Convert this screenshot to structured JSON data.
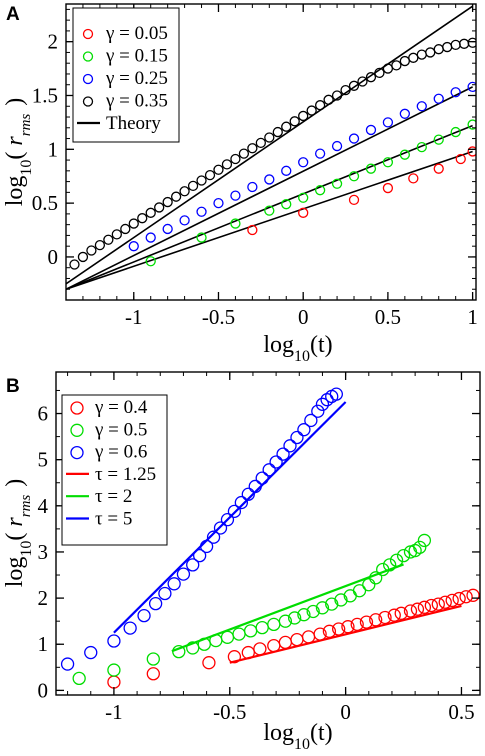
{
  "chart_data": [
    {
      "panel": "A",
      "type": "scatter",
      "xlabel": "log10(t)",
      "ylabel": "log10( r_rms )",
      "xlim": [
        -1.4,
        1.02
      ],
      "ylim": [
        -0.4,
        2.35
      ],
      "x_ticks": [
        -1,
        -0.5,
        0,
        0.5,
        1
      ],
      "x_tick_labels": [
        "-1",
        "-0.5",
        "0",
        "0.5",
        "1"
      ],
      "y_ticks": [
        0,
        0.5,
        1,
        1.5,
        2
      ],
      "y_tick_labels": [
        "0",
        "0.5",
        "1",
        "1.5",
        "2"
      ],
      "minor_x_step": 0.1,
      "minor_y_step": 0.1,
      "legend_position": "top-left",
      "series": [
        {
          "name": "γ = 0.05",
          "color": "#ff0000",
          "marker": "open-circle",
          "x": [
            -0.3,
            0.0,
            0.3,
            0.5,
            0.65,
            0.8,
            0.93,
            1.0
          ],
          "y": [
            0.25,
            0.41,
            0.53,
            0.64,
            0.73,
            0.82,
            0.91,
            0.98
          ]
        },
        {
          "name": "γ = 0.15",
          "color": "#00dd00",
          "marker": "open-circle",
          "x": [
            -0.9,
            -0.6,
            -0.4,
            -0.2,
            -0.1,
            0.0,
            0.1,
            0.2,
            0.3,
            0.4,
            0.5,
            0.6,
            0.7,
            0.8,
            0.9,
            1.0
          ],
          "y": [
            -0.04,
            0.18,
            0.31,
            0.43,
            0.49,
            0.55,
            0.62,
            0.68,
            0.75,
            0.82,
            0.88,
            0.95,
            1.02,
            1.09,
            1.16,
            1.23
          ]
        },
        {
          "name": "γ = 0.25",
          "color": "#0000ff",
          "marker": "open-circle",
          "x": [
            -1.0,
            -0.9,
            -0.8,
            -0.7,
            -0.6,
            -0.5,
            -0.4,
            -0.3,
            -0.2,
            -0.1,
            0.0,
            0.1,
            0.2,
            0.3,
            0.4,
            0.5,
            0.6,
            0.7,
            0.8,
            0.9,
            1.0
          ],
          "y": [
            0.1,
            0.18,
            0.26,
            0.34,
            0.42,
            0.5,
            0.57,
            0.65,
            0.72,
            0.8,
            0.88,
            0.96,
            1.03,
            1.1,
            1.18,
            1.25,
            1.33,
            1.4,
            1.47,
            1.53,
            1.58
          ]
        },
        {
          "name": "γ = 0.35",
          "color": "#000000",
          "marker": "open-circle",
          "x": [
            -1.35,
            -1.3,
            -1.25,
            -1.2,
            -1.15,
            -1.1,
            -1.05,
            -1.0,
            -0.95,
            -0.9,
            -0.85,
            -0.8,
            -0.75,
            -0.7,
            -0.65,
            -0.6,
            -0.55,
            -0.5,
            -0.45,
            -0.4,
            -0.35,
            -0.3,
            -0.25,
            -0.2,
            -0.15,
            -0.1,
            -0.05,
            0.0,
            0.05,
            0.1,
            0.15,
            0.2,
            0.25,
            0.3,
            0.35,
            0.4,
            0.45,
            0.5,
            0.55,
            0.6,
            0.65,
            0.7,
            0.75,
            0.8,
            0.85,
            0.9,
            0.95,
            1.0
          ],
          "y": [
            -0.07,
            0.0,
            0.06,
            0.11,
            0.16,
            0.21,
            0.26,
            0.31,
            0.36,
            0.41,
            0.46,
            0.51,
            0.56,
            0.61,
            0.66,
            0.71,
            0.76,
            0.81,
            0.86,
            0.91,
            0.96,
            1.01,
            1.06,
            1.11,
            1.16,
            1.21,
            1.26,
            1.31,
            1.36,
            1.41,
            1.46,
            1.5,
            1.55,
            1.59,
            1.63,
            1.67,
            1.71,
            1.75,
            1.78,
            1.82,
            1.85,
            1.88,
            1.9,
            1.93,
            1.95,
            1.97,
            1.98,
            1.99
          ]
        }
      ],
      "lines": [
        {
          "name": "Theory",
          "color": "#000000",
          "x": [
            -1.4,
            1.0
          ],
          "y": [
            -0.25,
            2.33
          ]
        },
        {
          "color": "#000000",
          "x": [
            -1.4,
            1.0
          ],
          "y": [
            -0.3,
            1.58
          ]
        },
        {
          "color": "#000000",
          "x": [
            -1.4,
            1.0
          ],
          "y": [
            -0.3,
            1.22
          ]
        },
        {
          "color": "#000000",
          "x": [
            -1.4,
            1.0
          ],
          "y": [
            -0.3,
            0.98
          ]
        }
      ]
    },
    {
      "panel": "B",
      "type": "scatter",
      "xlabel": "log10(t)",
      "ylabel": "log10( r_rms )",
      "xlim": [
        -1.25,
        0.58
      ],
      "ylim": [
        -0.1,
        6.9
      ],
      "x_ticks": [
        -1,
        -0.5,
        0,
        0.5
      ],
      "x_tick_labels": [
        "-1",
        "-0.5",
        "0",
        "0.5"
      ],
      "y_ticks": [
        0,
        1,
        2,
        3,
        4,
        5,
        6
      ],
      "y_tick_labels": [
        "0",
        "1",
        "2",
        "3",
        "4",
        "5",
        "6"
      ],
      "minor_x_step": 0.1,
      "minor_y_step": 0.5,
      "legend_position": "top-left",
      "series": [
        {
          "name": "γ = 0.4",
          "color": "#ff0000",
          "marker": "open-circle",
          "x": [
            -1.0,
            -0.83,
            -0.59,
            -0.48,
            -0.42,
            -0.37,
            -0.31,
            -0.26,
            -0.21,
            -0.16,
            -0.11,
            -0.07,
            -0.03,
            0.01,
            0.05,
            0.09,
            0.13,
            0.17,
            0.21,
            0.24,
            0.28,
            0.31,
            0.34,
            0.37,
            0.4,
            0.43,
            0.46,
            0.49,
            0.52,
            0.55
          ],
          "y": [
            0.18,
            0.36,
            0.6,
            0.73,
            0.82,
            0.9,
            0.97,
            1.04,
            1.1,
            1.16,
            1.22,
            1.28,
            1.33,
            1.38,
            1.43,
            1.48,
            1.53,
            1.58,
            1.63,
            1.67,
            1.72,
            1.76,
            1.8,
            1.84,
            1.87,
            1.91,
            1.95,
            1.99,
            2.03,
            2.06
          ]
        },
        {
          "name": "γ = 0.5",
          "color": "#00dd00",
          "marker": "open-circle",
          "x": [
            -1.15,
            -1.0,
            -0.83,
            -0.72,
            -0.66,
            -0.61,
            -0.56,
            -0.51,
            -0.46,
            -0.41,
            -0.36,
            -0.31,
            -0.26,
            -0.22,
            -0.18,
            -0.14,
            -0.1,
            -0.06,
            -0.02,
            0.02,
            0.06,
            0.1,
            0.13,
            0.16,
            0.19,
            0.22,
            0.25,
            0.28,
            0.3,
            0.32,
            0.34
          ],
          "y": [
            0.26,
            0.44,
            0.68,
            0.84,
            0.92,
            1.0,
            1.08,
            1.15,
            1.22,
            1.29,
            1.36,
            1.43,
            1.5,
            1.57,
            1.64,
            1.71,
            1.79,
            1.87,
            1.96,
            2.05,
            2.16,
            2.29,
            2.44,
            2.62,
            2.72,
            2.82,
            2.92,
            3.0,
            3.03,
            3.1,
            3.25
          ]
        },
        {
          "name": "γ = 0.6",
          "color": "#0000ff",
          "marker": "open-circle",
          "x": [
            -1.2,
            -1.1,
            -1.0,
            -0.93,
            -0.87,
            -0.82,
            -0.78,
            -0.74,
            -0.7,
            -0.66,
            -0.63,
            -0.6,
            -0.57,
            -0.54,
            -0.51,
            -0.48,
            -0.45,
            -0.42,
            -0.39,
            -0.36,
            -0.33,
            -0.3,
            -0.27,
            -0.24,
            -0.21,
            -0.18,
            -0.15,
            -0.12,
            -0.1,
            -0.08,
            -0.06,
            -0.04
          ],
          "y": [
            0.57,
            0.82,
            1.07,
            1.35,
            1.62,
            1.88,
            2.1,
            2.31,
            2.52,
            2.72,
            2.92,
            3.12,
            3.32,
            3.52,
            3.7,
            3.88,
            4.07,
            4.25,
            4.42,
            4.6,
            4.78,
            4.95,
            5.12,
            5.3,
            5.48,
            5.65,
            5.85,
            6.05,
            6.2,
            6.3,
            6.37,
            6.42
          ]
        }
      ],
      "lines": [
        {
          "name": "τ = 1.25",
          "color": "#ff0000",
          "x": [
            -0.5,
            0.5
          ],
          "y": [
            0.6,
            1.83
          ]
        },
        {
          "name": "τ = 2",
          "color": "#00dd00",
          "x": [
            -0.75,
            0.25
          ],
          "y": [
            0.85,
            2.73
          ]
        },
        {
          "name": "τ = 5",
          "color": "#0000ff",
          "x": [
            -1.0,
            0.0
          ],
          "y": [
            1.25,
            6.25
          ]
        }
      ]
    }
  ]
}
